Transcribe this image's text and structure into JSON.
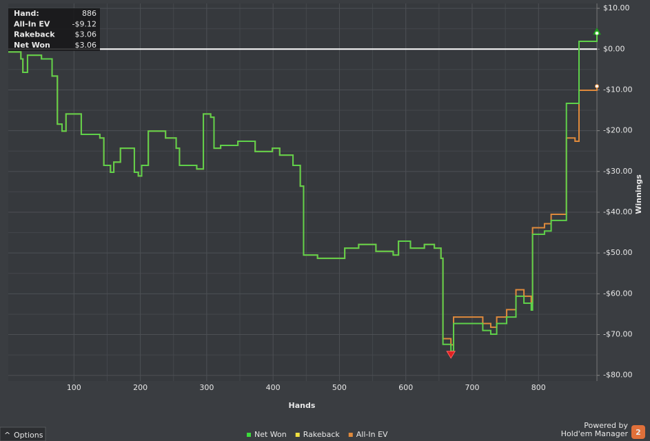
{
  "chart_data": {
    "type": "line",
    "x_label": "Hands",
    "y_label": "Winnings",
    "xlim": [
      1,
      888
    ],
    "ylim": [
      -81.4,
      11.2
    ],
    "xticks": [
      100,
      200,
      300,
      400,
      500,
      600,
      700,
      800
    ],
    "yticks": [
      {
        "value": 10,
        "label": "$10.00"
      },
      {
        "value": 0,
        "label": "$0.00"
      },
      {
        "value": -10,
        "label": "-$10.00"
      },
      {
        "value": -20,
        "label": "-$20.00"
      },
      {
        "value": -30,
        "label": "-$30.00"
      },
      {
        "value": -40,
        "label": "-$40.00"
      },
      {
        "value": -50,
        "label": "-$50.00"
      },
      {
        "value": -60,
        "label": "-$60.00"
      },
      {
        "value": -70,
        "label": "-$70.00"
      },
      {
        "value": -80,
        "label": "-$80.00"
      }
    ],
    "grid": true,
    "x": [
      1,
      20,
      23,
      30,
      51,
      67,
      72,
      75,
      82,
      88,
      108,
      111,
      139,
      145,
      155,
      160,
      170,
      186,
      191,
      197,
      202,
      209,
      212,
      219,
      238,
      254,
      259,
      285,
      295,
      306,
      311,
      321,
      347,
      373,
      399,
      410,
      430,
      441,
      446,
      467,
      498,
      508,
      529,
      555,
      581,
      589,
      607,
      628,
      643,
      653,
      656,
      668,
      672,
      716,
      728,
      737,
      752,
      766,
      778,
      789,
      791,
      809,
      819,
      840,
      842,
      855,
      858,
      861,
      876,
      888
    ],
    "series": [
      {
        "name": "All-In EV",
        "color": "#e08a3c",
        "values": [
          -0.7,
          -2.4,
          -5.7,
          -1.5,
          -2.4,
          -6.6,
          -6.6,
          -18.4,
          -20.1,
          -15.9,
          -15.9,
          -20.9,
          -21.8,
          -28.5,
          -30.2,
          -27.7,
          -24.3,
          -24.3,
          -30.2,
          -31.1,
          -28.5,
          -28.5,
          -20.1,
          -20.1,
          -21.8,
          -24.3,
          -28.5,
          -29.4,
          -15.9,
          -16.7,
          -24.3,
          -23.6,
          -22.6,
          -25.1,
          -24.3,
          -26.0,
          -28.5,
          -33.6,
          -50.5,
          -51.3,
          -51.3,
          -48.8,
          -47.9,
          -49.6,
          -50.5,
          -47.1,
          -48.8,
          -47.9,
          -48.8,
          -51.3,
          -71.0,
          -72.5,
          -65.7,
          -67.3,
          -68.2,
          -65.7,
          -63.9,
          -59.0,
          -60.6,
          -62.3,
          -43.8,
          -42.8,
          -40.5,
          -40.5,
          -21.8,
          -22.6,
          -22.6,
          -10.1,
          -10.1,
          -9.1
        ]
      },
      {
        "name": "Net Won",
        "color": "#5fd14a",
        "values": [
          -0.7,
          -2.4,
          -5.7,
          -1.5,
          -2.4,
          -6.6,
          -6.6,
          -18.4,
          -20.1,
          -15.9,
          -15.9,
          -20.9,
          -21.8,
          -28.5,
          -30.2,
          -27.7,
          -24.3,
          -24.3,
          -30.2,
          -31.1,
          -28.5,
          -28.5,
          -20.1,
          -20.1,
          -21.8,
          -24.3,
          -28.5,
          -29.4,
          -15.9,
          -16.7,
          -24.3,
          -23.6,
          -22.6,
          -25.1,
          -24.3,
          -26.0,
          -28.5,
          -33.6,
          -50.5,
          -51.3,
          -51.3,
          -48.8,
          -47.9,
          -49.6,
          -50.5,
          -47.1,
          -48.8,
          -47.9,
          -48.8,
          -51.3,
          -72.4,
          -74.1,
          -67.3,
          -69.0,
          -69.9,
          -67.3,
          -65.7,
          -60.6,
          -62.3,
          -64.0,
          -45.4,
          -44.6,
          -42.0,
          -42.0,
          -13.3,
          -13.3,
          -13.3,
          1.9,
          1.9,
          3.9
        ]
      }
    ],
    "legend": [
      {
        "name": "Net Won",
        "color": "#3bdc3b"
      },
      {
        "name": "Rakeback",
        "color": "#f0e040"
      },
      {
        "name": "All-In EV",
        "color": "#e08a3c"
      }
    ],
    "tooltip": [
      [
        "Hand:",
        "886"
      ],
      [
        "All-In EV",
        "-$9.12"
      ],
      [
        "Rakeback",
        "$3.06"
      ],
      [
        "Net Won",
        "$3.06"
      ]
    ]
  },
  "footer": {
    "options": "Options",
    "powered_by": "Powered by",
    "brand": "Hold'em Manager",
    "logo": "2"
  }
}
